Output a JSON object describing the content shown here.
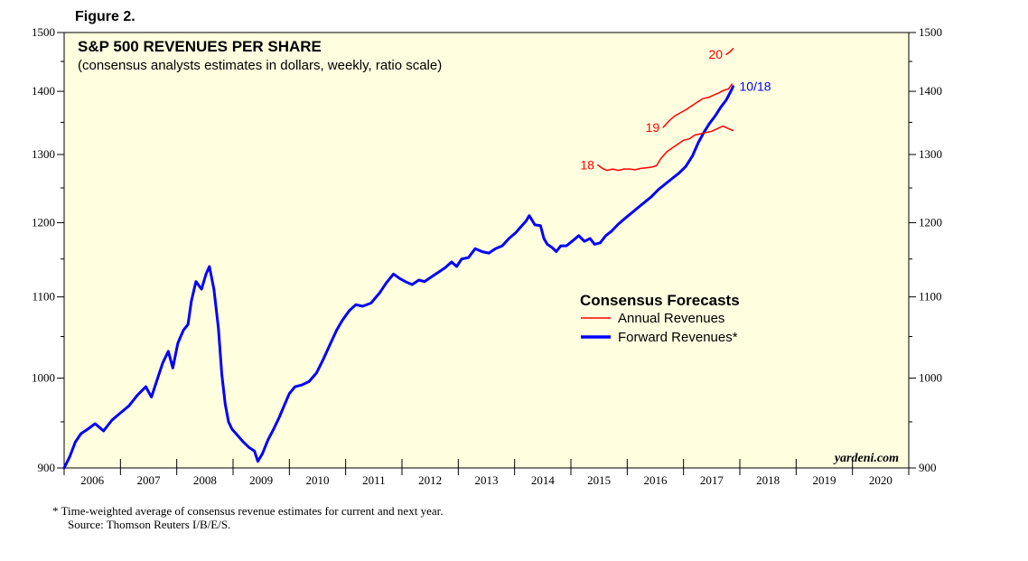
{
  "figure_label": "Figure 2.",
  "footnote_1": "*  Time-weighted average of consensus revenue estimates for current and next year.",
  "footnote_2": "Source: Thomson Reuters I/B/E/S.",
  "watermark": "yardeni.com",
  "colors": {
    "background": "#ffffe0",
    "annual": "#ff0000",
    "forward": "#0000ff"
  },
  "chart_data": {
    "type": "line",
    "title": "S&P 500 REVENUES PER SHARE",
    "subtitle": "(consensus analysts estimates in dollars, weekly, ratio scale)",
    "y_scale": "log",
    "ylim": [
      900,
      1500
    ],
    "y_tick_labels": [
      "900",
      "1000",
      "1100",
      "1200",
      "1300",
      "1400",
      "1500"
    ],
    "y_minor_ticks": [
      950,
      1050,
      1150,
      1250,
      1350,
      1450
    ],
    "xlim": [
      2006,
      2021
    ],
    "x_tick_labels": [
      "2006",
      "2007",
      "2008",
      "2009",
      "2010",
      "2011",
      "2012",
      "2013",
      "2014",
      "2015",
      "2016",
      "2017",
      "2018",
      "2019",
      "2020"
    ],
    "legend": {
      "title": "Consensus Forecasts",
      "entries": [
        "Annual Revenues",
        "Forward Revenues*"
      ],
      "placement": "center-right"
    },
    "series": [
      {
        "name": "Forward Revenues*",
        "color": "#0000ff",
        "end_label": "10/18",
        "points": [
          [
            2006.0,
            900
          ],
          [
            2006.1,
            912
          ],
          [
            2006.2,
            928
          ],
          [
            2006.3,
            937
          ],
          [
            2006.42,
            942
          ],
          [
            2006.55,
            948
          ],
          [
            2006.7,
            940
          ],
          [
            2006.85,
            952
          ],
          [
            2007.0,
            960
          ],
          [
            2007.15,
            968
          ],
          [
            2007.3,
            980
          ],
          [
            2007.45,
            990
          ],
          [
            2007.55,
            978
          ],
          [
            2007.65,
            998
          ],
          [
            2007.75,
            1018
          ],
          [
            2007.85,
            1032
          ],
          [
            2007.93,
            1012
          ],
          [
            2008.02,
            1042
          ],
          [
            2008.12,
            1058
          ],
          [
            2008.2,
            1065
          ],
          [
            2008.26,
            1095
          ],
          [
            2008.34,
            1120
          ],
          [
            2008.44,
            1110
          ],
          [
            2008.52,
            1130
          ],
          [
            2008.58,
            1140
          ],
          [
            2008.66,
            1110
          ],
          [
            2008.74,
            1060
          ],
          [
            2008.8,
            1005
          ],
          [
            2008.86,
            970
          ],
          [
            2008.92,
            950
          ],
          [
            2008.98,
            942
          ],
          [
            2009.08,
            935
          ],
          [
            2009.18,
            928
          ],
          [
            2009.28,
            922
          ],
          [
            2009.38,
            918
          ],
          [
            2009.44,
            907
          ],
          [
            2009.52,
            915
          ],
          [
            2009.62,
            930
          ],
          [
            2009.72,
            942
          ],
          [
            2009.82,
            955
          ],
          [
            2009.92,
            970
          ],
          [
            2010.0,
            982
          ],
          [
            2010.1,
            990
          ],
          [
            2010.22,
            992
          ],
          [
            2010.35,
            996
          ],
          [
            2010.48,
            1006
          ],
          [
            2010.6,
            1022
          ],
          [
            2010.72,
            1040
          ],
          [
            2010.84,
            1058
          ],
          [
            2010.94,
            1070
          ],
          [
            2011.06,
            1082
          ],
          [
            2011.18,
            1090
          ],
          [
            2011.3,
            1088
          ],
          [
            2011.45,
            1092
          ],
          [
            2011.6,
            1105
          ],
          [
            2011.72,
            1118
          ],
          [
            2011.85,
            1130
          ],
          [
            2011.96,
            1124
          ],
          [
            2012.06,
            1120
          ],
          [
            2012.18,
            1116
          ],
          [
            2012.3,
            1122
          ],
          [
            2012.4,
            1120
          ],
          [
            2012.52,
            1126
          ],
          [
            2012.64,
            1132
          ],
          [
            2012.76,
            1138
          ],
          [
            2012.88,
            1146
          ],
          [
            2012.97,
            1140
          ],
          [
            2013.06,
            1150
          ],
          [
            2013.18,
            1152
          ],
          [
            2013.3,
            1164
          ],
          [
            2013.42,
            1160
          ],
          [
            2013.54,
            1158
          ],
          [
            2013.66,
            1164
          ],
          [
            2013.78,
            1168
          ],
          [
            2013.9,
            1178
          ],
          [
            2014.02,
            1186
          ],
          [
            2014.12,
            1195
          ],
          [
            2014.2,
            1202
          ],
          [
            2014.26,
            1210
          ],
          [
            2014.36,
            1197
          ],
          [
            2014.46,
            1196
          ],
          [
            2014.52,
            1178
          ],
          [
            2014.58,
            1170
          ],
          [
            2014.66,
            1166
          ],
          [
            2014.74,
            1160
          ],
          [
            2014.82,
            1168
          ],
          [
            2014.92,
            1168
          ],
          [
            2015.02,
            1174
          ],
          [
            2015.14,
            1182
          ],
          [
            2015.24,
            1174
          ],
          [
            2015.34,
            1178
          ],
          [
            2015.42,
            1170
          ],
          [
            2015.52,
            1172
          ],
          [
            2015.62,
            1182
          ],
          [
            2015.72,
            1188
          ],
          [
            2015.84,
            1198
          ],
          [
            2015.96,
            1206
          ],
          [
            2016.08,
            1214
          ],
          [
            2016.2,
            1222
          ],
          [
            2016.32,
            1230
          ],
          [
            2016.44,
            1238
          ],
          [
            2016.56,
            1248
          ],
          [
            2016.68,
            1256
          ],
          [
            2016.8,
            1264
          ],
          [
            2016.92,
            1272
          ],
          [
            2017.04,
            1282
          ],
          [
            2017.16,
            1298
          ],
          [
            2017.26,
            1318
          ],
          [
            2017.36,
            1334
          ],
          [
            2017.46,
            1348
          ],
          [
            2017.56,
            1360
          ],
          [
            2017.66,
            1374
          ],
          [
            2017.76,
            1386
          ],
          [
            2017.84,
            1400
          ],
          [
            2017.88,
            1408
          ]
        ]
      },
      {
        "name": "Annual Revenues 2018",
        "color": "#ff0000",
        "start_label": "18",
        "points": [
          [
            2015.48,
            1284
          ],
          [
            2015.56,
            1279
          ],
          [
            2015.64,
            1276
          ],
          [
            2015.74,
            1278
          ],
          [
            2015.84,
            1276
          ],
          [
            2015.94,
            1278
          ],
          [
            2016.04,
            1278
          ],
          [
            2016.14,
            1277
          ],
          [
            2016.24,
            1279
          ],
          [
            2016.34,
            1280
          ],
          [
            2016.44,
            1281
          ],
          [
            2016.52,
            1283
          ],
          [
            2016.6,
            1294
          ],
          [
            2016.7,
            1304
          ],
          [
            2016.8,
            1310
          ],
          [
            2016.9,
            1316
          ],
          [
            2017.0,
            1322
          ],
          [
            2017.1,
            1324
          ],
          [
            2017.2,
            1330
          ],
          [
            2017.3,
            1332
          ],
          [
            2017.4,
            1334
          ],
          [
            2017.5,
            1336
          ],
          [
            2017.6,
            1340
          ],
          [
            2017.7,
            1344
          ],
          [
            2017.8,
            1340
          ],
          [
            2017.88,
            1337
          ]
        ]
      },
      {
        "name": "Annual Revenues 2019",
        "color": "#ff0000",
        "start_label": "19",
        "points": [
          [
            2016.64,
            1342
          ],
          [
            2016.74,
            1352
          ],
          [
            2016.84,
            1360
          ],
          [
            2016.94,
            1365
          ],
          [
            2017.04,
            1370
          ],
          [
            2017.14,
            1376
          ],
          [
            2017.24,
            1382
          ],
          [
            2017.34,
            1388
          ],
          [
            2017.44,
            1390
          ],
          [
            2017.54,
            1394
          ],
          [
            2017.64,
            1398
          ],
          [
            2017.72,
            1402
          ],
          [
            2017.8,
            1404
          ],
          [
            2017.86,
            1412
          ]
        ]
      },
      {
        "name": "Annual Revenues 2020",
        "color": "#ff0000",
        "start_label": "20",
        "points": [
          [
            2017.76,
            1462
          ],
          [
            2017.82,
            1466
          ],
          [
            2017.88,
            1472
          ]
        ]
      }
    ]
  }
}
